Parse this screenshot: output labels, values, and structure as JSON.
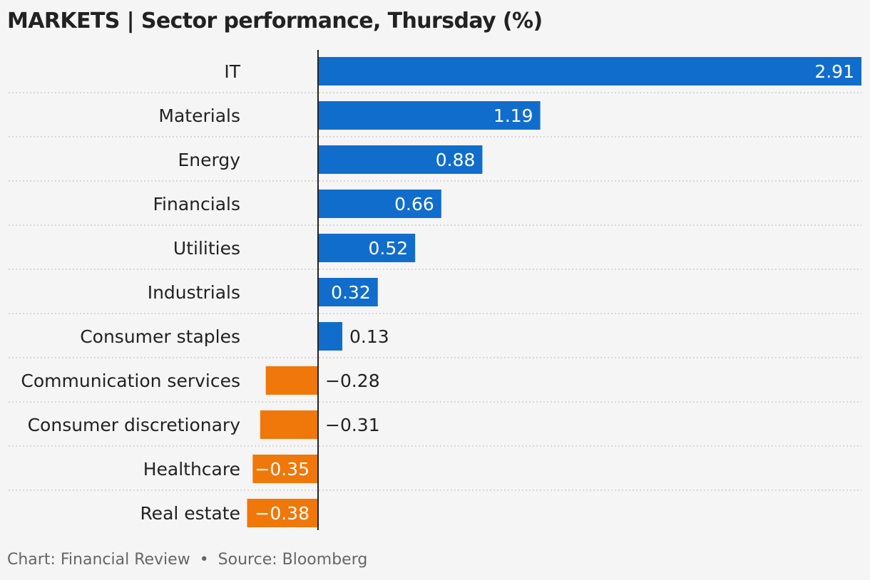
{
  "title": "MARKETS | Sector performance, Thursday (%)",
  "footer": {
    "chart_credit": "Chart: Financial Review",
    "separator": "•",
    "source": "Source: Bloomberg"
  },
  "colors": {
    "positive": "#116dcc",
    "negative": "#f0770a",
    "axis": "#222222",
    "grid": "#bbbbbb",
    "background": "#f5f5f5"
  },
  "chart_data": {
    "type": "bar",
    "orientation": "horizontal",
    "title": "MARKETS | Sector performance, Thursday (%)",
    "xlabel": "",
    "ylabel": "",
    "categories": [
      "IT",
      "Materials",
      "Energy",
      "Financials",
      "Utilities",
      "Industrials",
      "Consumer staples",
      "Communication services",
      "Consumer discretionary",
      "Healthcare",
      "Real estate"
    ],
    "values": [
      2.91,
      1.19,
      0.88,
      0.66,
      0.52,
      0.32,
      0.13,
      -0.28,
      -0.31,
      -0.35,
      -0.38
    ],
    "value_labels": [
      "2.91",
      "1.19",
      "0.88",
      "0.66",
      "0.52",
      "0.32",
      "0.13",
      "−0.28",
      "−0.31",
      "−0.35",
      "−0.38"
    ],
    "xlim": [
      -0.38,
      2.91
    ],
    "grid": "horizontal dotted separators",
    "legend": "none"
  }
}
